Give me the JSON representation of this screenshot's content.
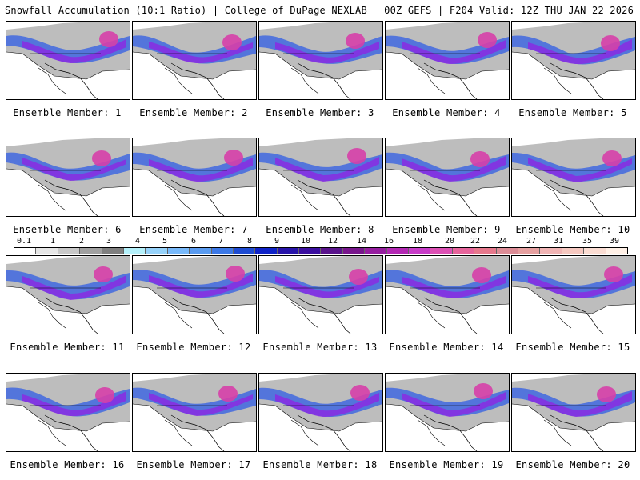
{
  "header": {
    "left_title": "Snowfall Accumulation (10:1 Ratio) | College of DuPage NEXLAB",
    "right_title": "00Z GEFS | F204 Valid: 12Z THU JAN 22 2026"
  },
  "panels": [
    {
      "label": "Ensemble Member: 1"
    },
    {
      "label": "Ensemble Member: 2"
    },
    {
      "label": "Ensemble Member: 3"
    },
    {
      "label": "Ensemble Member: 4"
    },
    {
      "label": "Ensemble Member: 5"
    },
    {
      "label": "Ensemble Member: 6"
    },
    {
      "label": "Ensemble Member: 7"
    },
    {
      "label": "Ensemble Member: 8"
    },
    {
      "label": "Ensemble Member: 9"
    },
    {
      "label": "Ensemble Member: 10"
    },
    {
      "label": "Ensemble Member: 11"
    },
    {
      "label": "Ensemble Member: 12"
    },
    {
      "label": "Ensemble Member: 13"
    },
    {
      "label": "Ensemble Member: 14"
    },
    {
      "label": "Ensemble Member: 15"
    },
    {
      "label": "Ensemble Member: 16"
    },
    {
      "label": "Ensemble Member: 17"
    },
    {
      "label": "Ensemble Member: 18"
    },
    {
      "label": "Ensemble Member: 19"
    },
    {
      "label": "Ensemble Member: 20"
    }
  ],
  "colorbar": {
    "ticks": [
      "0.1",
      "1",
      "2",
      "3",
      "4",
      "5",
      "6",
      "7",
      "8",
      "9",
      "10",
      "12",
      "14",
      "16",
      "18",
      "20",
      "22",
      "24",
      "27",
      "31",
      "35",
      "39"
    ],
    "colors": [
      "#ffffff",
      "#e6e6e6",
      "#c8c8c8",
      "#a0a0a0",
      "#7f7f7f",
      "#b4f0fa",
      "#96d2fa",
      "#78b9fa",
      "#5a9bf0",
      "#3c78e6",
      "#1e4bd2",
      "#0f23c8",
      "#2814aa",
      "#3c0fa0",
      "#5a148c",
      "#78168c",
      "#961ea0",
      "#b428b4",
      "#c83cc8",
      "#dc50b4",
      "#e6649b",
      "#e6788c",
      "#dc8c96",
      "#e6a0a0",
      "#f0b4b4",
      "#f5c8c0",
      "#fadcd2",
      "#fff0e6"
    ]
  }
}
